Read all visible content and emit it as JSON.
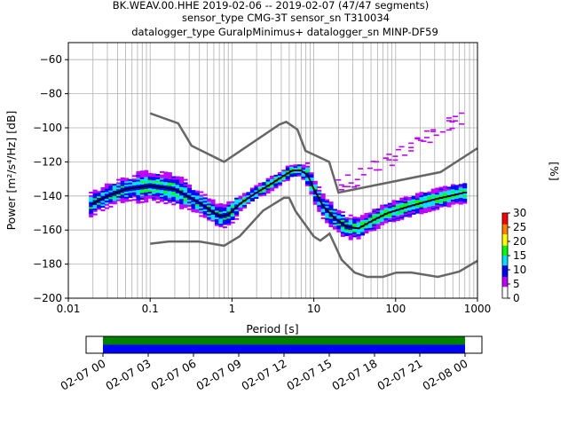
{
  "title": {
    "line1": "BK.WEAV.00.HHE   2019-02-06 -- 2019-02-07  (47/47 segments)",
    "line2": "sensor_type CMG-3T sensor_sn T310034",
    "line3": "datalogger_type GuralpMinimus+ datalogger_sn MINP-DF59"
  },
  "chart_data": {
    "type": "heatmap",
    "xlabel": "Period [s]",
    "ylabel": "Power [m²/s⁴/Hz] [dB]",
    "x_scale": "log",
    "xlim": [
      0.01,
      1000
    ],
    "ylim": [
      -200,
      -50
    ],
    "x_ticks": [
      0.01,
      0.1,
      1,
      10,
      100,
      1000
    ],
    "x_tick_labels": [
      "0.01",
      "0.1",
      "1",
      "10",
      "100",
      "1000"
    ],
    "y_ticks": [
      -200,
      -180,
      -160,
      -140,
      -120,
      -100,
      -80,
      -60
    ],
    "y_tick_labels": [
      "−200",
      "−180",
      "−160",
      "−140",
      "−120",
      "−100",
      "−80",
      "−60"
    ],
    "grid": true,
    "colorbar": {
      "label": "[%]",
      "range": [
        0,
        30
      ],
      "ticks": [
        0,
        5,
        10,
        15,
        20,
        25,
        30
      ],
      "colors": [
        "#ffffff",
        "#c000ff",
        "#0000ff",
        "#00e0ff",
        "#00ff00",
        "#ffff00",
        "#ff8000",
        "#ff0000"
      ]
    },
    "mean_curve": [
      [
        0.019,
        -145
      ],
      [
        0.03,
        -140
      ],
      [
        0.05,
        -136
      ],
      [
        0.1,
        -134
      ],
      [
        0.2,
        -136
      ],
      [
        0.4,
        -144
      ],
      [
        0.7,
        -152
      ],
      [
        0.9,
        -151
      ],
      [
        1.3,
        -144
      ],
      [
        2,
        -138
      ],
      [
        3,
        -133
      ],
      [
        4,
        -129
      ],
      [
        5.5,
        -125
      ],
      [
        7,
        -125
      ],
      [
        8.5,
        -128
      ],
      [
        10,
        -136
      ],
      [
        13,
        -146
      ],
      [
        18,
        -153
      ],
      [
        25,
        -158
      ],
      [
        35,
        -159
      ],
      [
        50,
        -155
      ],
      [
        80,
        -150
      ],
      [
        150,
        -146
      ],
      [
        300,
        -142
      ],
      [
        700,
        -138
      ]
    ],
    "high_noise_model": [
      [
        0.1,
        -91.5
      ],
      [
        0.22,
        -97.4
      ],
      [
        0.32,
        -110.5
      ],
      [
        0.8,
        -120
      ],
      [
        3.8,
        -98
      ],
      [
        4.6,
        -96.5
      ],
      [
        6.3,
        -101
      ],
      [
        7.9,
        -113.5
      ],
      [
        15.4,
        -120
      ],
      [
        20,
        -138
      ],
      [
        354,
        -126
      ],
      [
        1000,
        -112
      ]
    ],
    "low_noise_model": [
      [
        0.1,
        -168
      ],
      [
        0.17,
        -166.7
      ],
      [
        0.4,
        -166.7
      ],
      [
        0.8,
        -169.2
      ],
      [
        1.24,
        -163.7
      ],
      [
        2.4,
        -148.6
      ],
      [
        4.3,
        -141.1
      ],
      [
        5,
        -141.1
      ],
      [
        6,
        -149
      ],
      [
        10,
        -163.8
      ],
      [
        12,
        -166.2
      ],
      [
        15.6,
        -162.1
      ],
      [
        21.9,
        -177.5
      ],
      [
        31.6,
        -185
      ],
      [
        45,
        -187.5
      ],
      [
        70,
        -187.5
      ],
      [
        101,
        -185
      ],
      [
        154,
        -184.9
      ],
      [
        328,
        -187.5
      ],
      [
        600,
        -184.4
      ],
      [
        1000,
        -178
      ]
    ],
    "coverage": {
      "ticks": [
        "02-07 00",
        "02-07 03",
        "02-07 06",
        "02-07 09",
        "02-07 12",
        "02-07 15",
        "02-07 18",
        "02-07 21",
        "02-08 00"
      ],
      "bars": [
        {
          "color": "#008000"
        },
        {
          "color": "#0000ff"
        }
      ]
    }
  },
  "colors": {
    "grid": "#b0b0b0",
    "model": "#666666",
    "mean": "#000000"
  }
}
